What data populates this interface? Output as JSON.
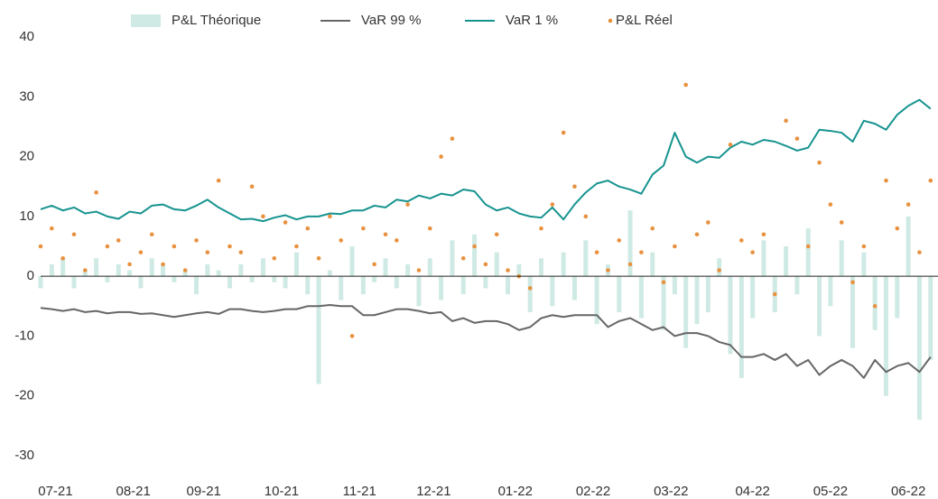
{
  "chart_data": {
    "type": "combo",
    "x": [
      0,
      3,
      6,
      9,
      12,
      15,
      18,
      21,
      24,
      27,
      30,
      33,
      36,
      39,
      42,
      45,
      48,
      51,
      54,
      57,
      60,
      63,
      66,
      69,
      72,
      75,
      78,
      81,
      84,
      87,
      90,
      93,
      96,
      99,
      102,
      105,
      108,
      111,
      114,
      117,
      120,
      123,
      126,
      129,
      132,
      135,
      138,
      141,
      144,
      147,
      150,
      153,
      156,
      159,
      162,
      165,
      168,
      171,
      174,
      177,
      180,
      183,
      186,
      189,
      192,
      195,
      198,
      201,
      204,
      207,
      210,
      213,
      216,
      219,
      222,
      225,
      228,
      231,
      234,
      237,
      240
    ],
    "xlim": [
      0,
      242
    ],
    "xticks": [
      {
        "value": 4,
        "label": "07-21"
      },
      {
        "value": 25,
        "label": "08-21"
      },
      {
        "value": 44,
        "label": "09-21"
      },
      {
        "value": 65,
        "label": "10-21"
      },
      {
        "value": 86,
        "label": "11-21"
      },
      {
        "value": 106,
        "label": "12-21"
      },
      {
        "value": 128,
        "label": "01-22"
      },
      {
        "value": 149,
        "label": "02-22"
      },
      {
        "value": 170,
        "label": "03-22"
      },
      {
        "value": 192,
        "label": "04-22"
      },
      {
        "value": 213,
        "label": "05-22"
      },
      {
        "value": 234,
        "label": "06-22"
      }
    ],
    "ylim": [
      -30,
      40
    ],
    "yticks": [
      -30,
      -20,
      -10,
      0,
      10,
      20,
      30,
      40
    ],
    "grid": false,
    "legend": "top",
    "series": [
      {
        "name": "P&L Théorique",
        "kind": "bar",
        "color": "#cfeae4",
        "values": [
          -2,
          2,
          3,
          -2,
          1,
          3,
          -1,
          2,
          1,
          -2,
          3,
          2,
          -1,
          1,
          -3,
          2,
          1,
          -2,
          2,
          -1,
          3,
          -1,
          -2,
          4,
          -3,
          -18,
          1,
          -4,
          5,
          -3,
          -1,
          3,
          -2,
          2,
          -5,
          3,
          -4,
          6,
          -3,
          7,
          -2,
          4,
          -3,
          2,
          -6,
          3,
          -5,
          4,
          -4,
          6,
          -8,
          2,
          -6,
          11,
          -7,
          4,
          -9,
          -3,
          -12,
          -8,
          -6,
          3,
          -13,
          -17,
          -7,
          6,
          -6,
          5,
          -3,
          8,
          -10,
          -5,
          6,
          -12,
          4,
          -9,
          -20,
          -7,
          10,
          -24,
          -14
        ]
      },
      {
        "name": "VaR 99 %",
        "kind": "line",
        "color": "#666666",
        "values": [
          -5.3,
          -5.5,
          -5.8,
          -5.5,
          -6,
          -5.8,
          -6.2,
          -6,
          -6,
          -6.3,
          -6.2,
          -6.5,
          -6.8,
          -6.5,
          -6.2,
          -6,
          -6.3,
          -5.5,
          -5.5,
          -5.8,
          -6,
          -5.8,
          -5.5,
          -5.5,
          -5,
          -5,
          -4.8,
          -5,
          -5,
          -6.5,
          -6.5,
          -6,
          -5.5,
          -5.5,
          -5.8,
          -6.2,
          -6,
          -7.5,
          -7,
          -7.8,
          -7.5,
          -7.5,
          -8,
          -9,
          -8.5,
          -7,
          -6.5,
          -6.8,
          -6.5,
          -6.5,
          -6.5,
          -8.5,
          -7.5,
          -7,
          -8,
          -9,
          -8.5,
          -10,
          -9.5,
          -9.5,
          -10,
          -11,
          -11.5,
          -13.5,
          -13.5,
          -13,
          -14,
          -13,
          -15,
          -14,
          -16.5,
          -15,
          -14,
          -15,
          -17,
          -14,
          -16,
          -15,
          -14.5,
          -16,
          -13.5
        ]
      },
      {
        "name": "VaR 1 %",
        "kind": "line",
        "color": "#16938f",
        "values": [
          11.2,
          11.8,
          11,
          11.5,
          10.5,
          10.8,
          10,
          9.6,
          10.8,
          10.5,
          11.8,
          12,
          11.2,
          11,
          11.8,
          12.8,
          11.5,
          10.5,
          9.5,
          9.6,
          9.2,
          9.8,
          10.2,
          9.5,
          10,
          10,
          10.5,
          10.4,
          11,
          11,
          11.8,
          11.5,
          12.8,
          12.5,
          13.5,
          13,
          13.8,
          13.5,
          14.5,
          14.2,
          12,
          11,
          11.5,
          10.5,
          10,
          9.8,
          11.5,
          9.5,
          12,
          14,
          15.5,
          16,
          15,
          14.5,
          13.8,
          17,
          18.5,
          24,
          20,
          19,
          20,
          19.8,
          21.5,
          22.5,
          22,
          22.8,
          22.5,
          21.8,
          21,
          21.5,
          24.5,
          24.3,
          24,
          22.5,
          26,
          25.5,
          24.5,
          27,
          28.5,
          29.5,
          28
        ]
      },
      {
        "name": "P&L Réel",
        "kind": "dot",
        "color": "#e8913f",
        "values": [
          5,
          8,
          3,
          7,
          1,
          14,
          5,
          6,
          2,
          4,
          7,
          2,
          5,
          1,
          6,
          4,
          16,
          5,
          4,
          15,
          10,
          3,
          9,
          5,
          8,
          3,
          10,
          6,
          -10,
          8,
          2,
          7,
          6,
          12,
          1,
          8,
          20,
          23,
          3,
          5,
          2,
          7,
          1,
          0,
          -2,
          8,
          12,
          24,
          15,
          10,
          4,
          1,
          6,
          2,
          4,
          8,
          -1,
          5,
          32,
          7,
          9,
          1,
          22,
          6,
          4,
          7,
          -3,
          26,
          23,
          5,
          19,
          12,
          9,
          -1,
          5,
          -5,
          16,
          8,
          12,
          4,
          16
        ]
      }
    ]
  }
}
